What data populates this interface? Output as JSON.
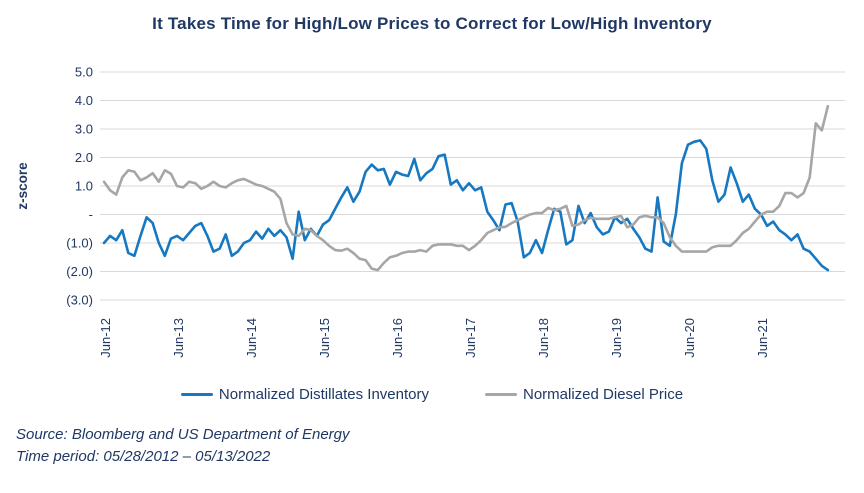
{
  "title": "It Takes Time for High/Low Prices to Correct for Low/High Inventory",
  "source_line1": "Source: Bloomberg and US Department of Energy",
  "source_line2": "Time period: 05/28/2012 – 05/13/2022",
  "colors": {
    "title_text": "#203864",
    "axis_text": "#203864",
    "gridline": "#d9d9d9",
    "blue_series": "#1778c2",
    "gray_series": "#a6a6a6"
  },
  "legend": {
    "item1_label": "Normalized Distillates Inventory",
    "item2_label": "Normalized Diesel Price"
  },
  "chart_data": {
    "type": "line",
    "title": "It Takes Time for High/Low Prices to Correct for Low/High Inventory",
    "xlabel": "",
    "ylabel": "z-score",
    "ylim": [
      -3.0,
      5.0
    ],
    "grid": true,
    "legend_position": "bottom",
    "ytick_values": [
      5,
      4,
      3,
      2,
      1,
      0,
      -1,
      -2,
      -3
    ],
    "ytick_labels": [
      "5.0",
      "4.0",
      "3.0",
      "2.0",
      "1.0",
      "-",
      "(1.0)",
      "(2.0)",
      "(3.0)"
    ],
    "xtick_labels": [
      "Jun-12",
      "Jun-13",
      "Jun-14",
      "Jun-15",
      "Jun-16",
      "Jun-17",
      "Jun-18",
      "Jun-19",
      "Jun-20",
      "Jun-21"
    ],
    "x_start_month": "2012-06",
    "x_step_months": 1,
    "series": [
      {
        "name": "Normalized Distillates Inventory",
        "color": "#1778c2",
        "values": [
          -1.0,
          -0.75,
          -0.9,
          -0.55,
          -1.35,
          -1.45,
          -0.75,
          -0.1,
          -0.3,
          -1.0,
          -1.45,
          -0.85,
          -0.75,
          -0.9,
          -0.65,
          -0.4,
          -0.3,
          -0.75,
          -1.3,
          -1.2,
          -0.7,
          -1.45,
          -1.3,
          -1.0,
          -0.9,
          -0.6,
          -0.85,
          -0.5,
          -0.75,
          -0.55,
          -0.8,
          -1.55,
          0.1,
          -0.9,
          -0.5,
          -0.75,
          -0.35,
          -0.2,
          0.2,
          0.6,
          0.95,
          0.45,
          0.8,
          1.5,
          1.75,
          1.55,
          1.6,
          1.05,
          1.5,
          1.4,
          1.35,
          1.95,
          1.2,
          1.45,
          1.6,
          2.05,
          2.1,
          1.05,
          1.2,
          0.85,
          1.1,
          0.85,
          0.95,
          0.1,
          -0.2,
          -0.55,
          0.35,
          0.4,
          -0.25,
          -1.5,
          -1.35,
          -0.9,
          -1.35,
          -0.55,
          0.2,
          0.1,
          -1.05,
          -0.9,
          0.3,
          -0.3,
          0.05,
          -0.45,
          -0.7,
          -0.6,
          -0.1,
          -0.3,
          -0.15,
          -0.5,
          -0.8,
          -1.2,
          -1.3,
          0.6,
          -0.95,
          -1.1,
          0.0,
          1.8,
          2.45,
          2.55,
          2.6,
          2.3,
          1.2,
          0.45,
          0.7,
          1.65,
          1.1,
          0.45,
          0.7,
          0.2,
          0.0,
          -0.4,
          -0.25,
          -0.55,
          -0.7,
          -0.9,
          -0.7,
          -1.2,
          -1.3,
          -1.55,
          -1.8,
          -1.95
        ]
      },
      {
        "name": "Normalized Diesel Price",
        "color": "#a6a6a6",
        "values": [
          1.15,
          0.85,
          0.7,
          1.3,
          1.55,
          1.5,
          1.2,
          1.3,
          1.45,
          1.15,
          1.55,
          1.43,
          1.0,
          0.95,
          1.15,
          1.1,
          0.9,
          1.0,
          1.15,
          1.0,
          0.95,
          1.1,
          1.2,
          1.25,
          1.15,
          1.05,
          1.0,
          0.9,
          0.8,
          0.55,
          -0.3,
          -0.7,
          -0.75,
          -0.5,
          -0.55,
          -0.75,
          -0.9,
          -1.1,
          -1.25,
          -1.27,
          -1.2,
          -1.35,
          -1.55,
          -1.6,
          -1.9,
          -1.95,
          -1.7,
          -1.5,
          -1.45,
          -1.35,
          -1.3,
          -1.3,
          -1.25,
          -1.3,
          -1.1,
          -1.05,
          -1.05,
          -1.05,
          -1.1,
          -1.1,
          -1.25,
          -1.1,
          -0.9,
          -0.65,
          -0.55,
          -0.45,
          -0.43,
          -0.3,
          -0.2,
          -0.1,
          0.0,
          0.05,
          0.05,
          0.23,
          0.15,
          0.2,
          0.3,
          -0.4,
          -0.35,
          -0.2,
          -0.12,
          -0.15,
          -0.15,
          -0.15,
          -0.1,
          -0.05,
          -0.45,
          -0.35,
          -0.1,
          -0.05,
          -0.1,
          -0.1,
          -0.3,
          -0.8,
          -1.1,
          -1.3,
          -1.3,
          -1.3,
          -1.3,
          -1.3,
          -1.15,
          -1.1,
          -1.1,
          -1.1,
          -0.9,
          -0.65,
          -0.5,
          -0.25,
          0.0,
          0.1,
          0.1,
          0.3,
          0.75,
          0.75,
          0.6,
          0.75,
          1.3,
          3.2,
          2.95,
          3.8
        ]
      }
    ]
  }
}
